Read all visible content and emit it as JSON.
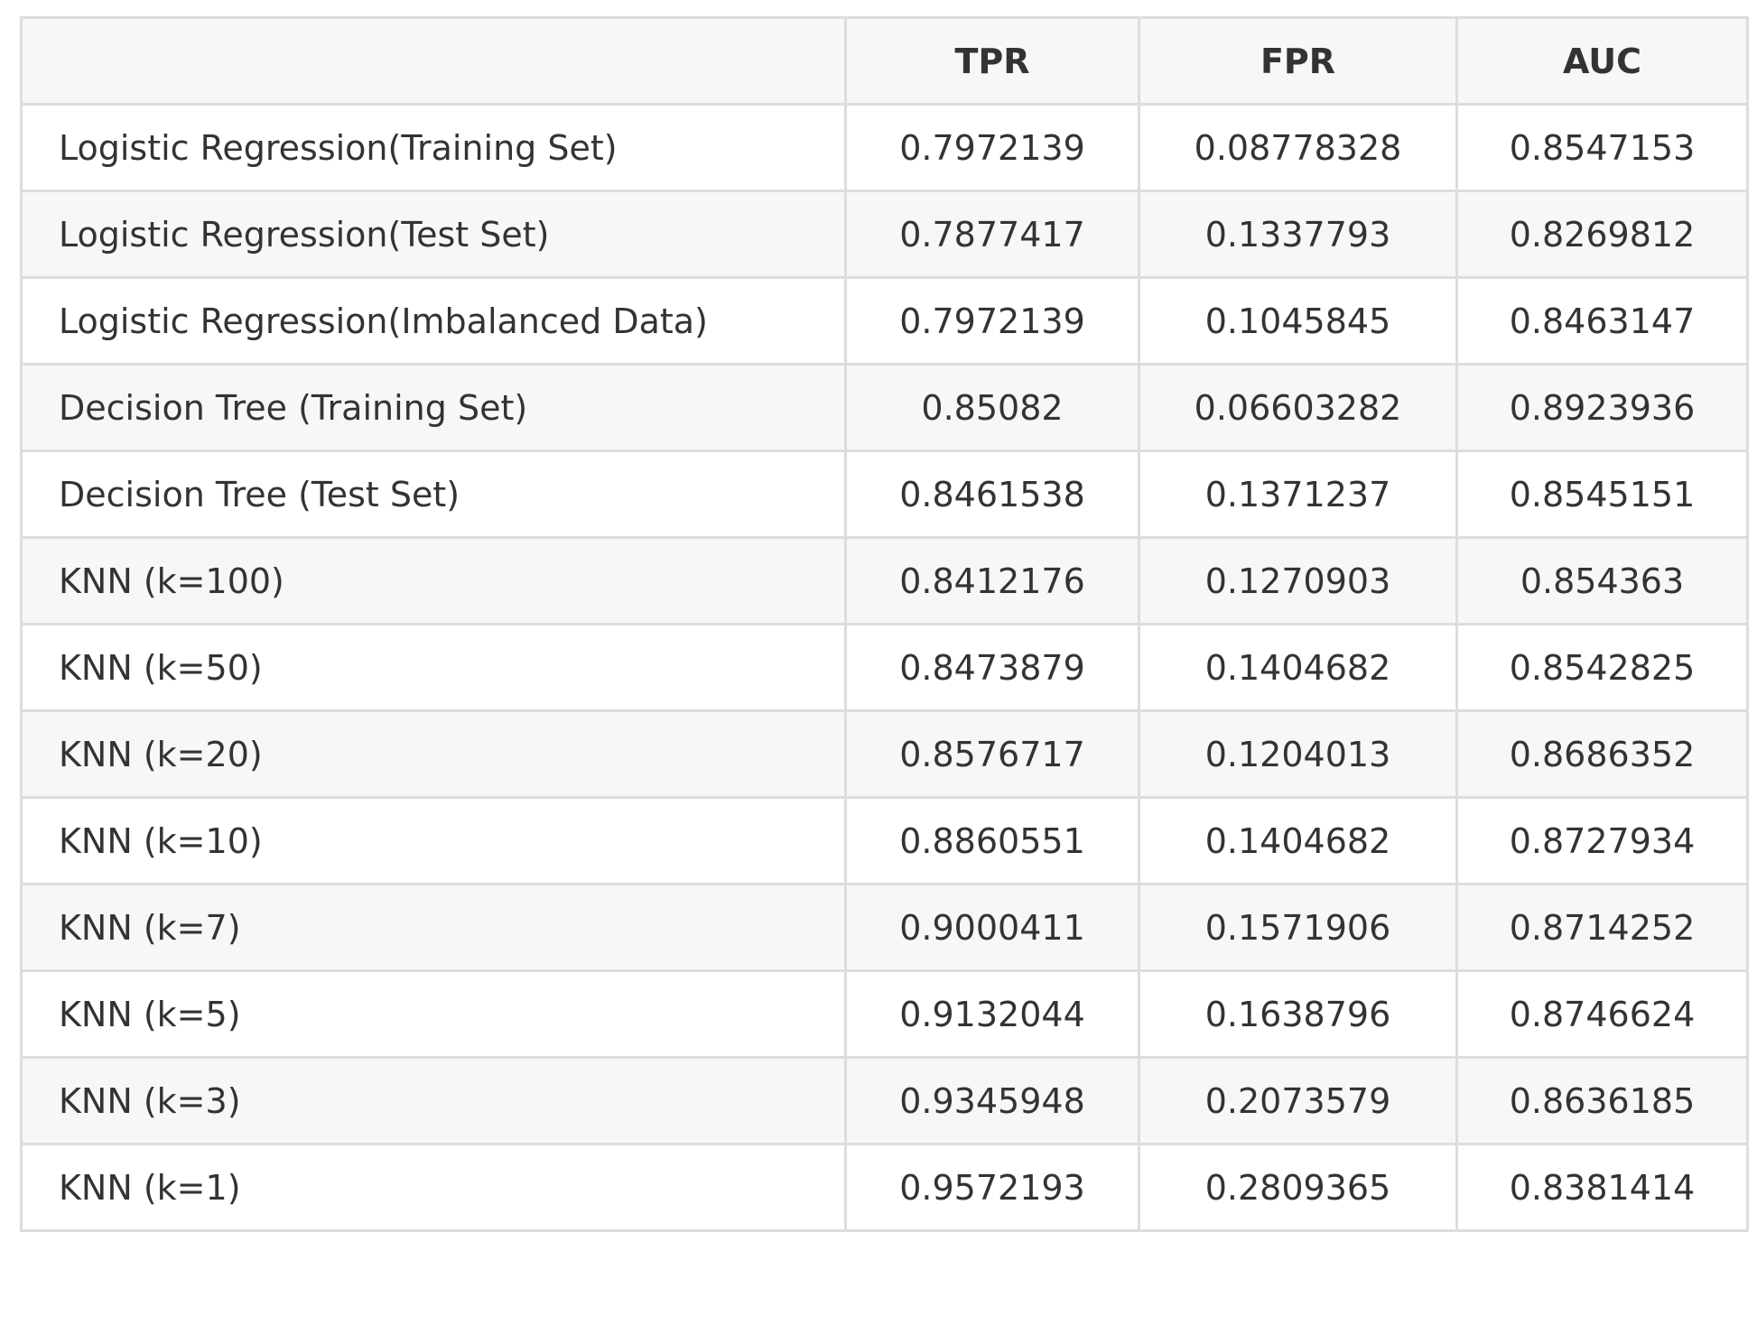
{
  "table": {
    "headers": [
      "",
      "TPR",
      "FPR",
      "AUC"
    ],
    "rows": [
      [
        "Logistic Regression(Training Set)",
        "0.7972139",
        "0.08778328",
        "0.8547153"
      ],
      [
        "Logistic Regression(Test Set)",
        "0.7877417",
        "0.1337793",
        "0.8269812"
      ],
      [
        "Logistic Regression(Imbalanced Data)",
        "0.7972139",
        "0.1045845",
        "0.8463147"
      ],
      [
        "Decision Tree (Training Set)",
        "0.85082",
        "0.06603282",
        "0.8923936"
      ],
      [
        "Decision Tree (Test Set)",
        "0.8461538",
        "0.1371237",
        "0.8545151"
      ],
      [
        "KNN (k=100)",
        "0.8412176",
        "0.1270903",
        "0.854363"
      ],
      [
        "KNN (k=50)",
        "0.8473879",
        "0.1404682",
        "0.8542825"
      ],
      [
        "KNN (k=20)",
        "0.8576717",
        "0.1204013",
        "0.8686352"
      ],
      [
        "KNN (k=10)",
        "0.8860551",
        "0.1404682",
        "0.8727934"
      ],
      [
        "KNN (k=7)",
        "0.9000411",
        "0.1571906",
        "0.8714252"
      ],
      [
        "KNN (k=5)",
        "0.9132044",
        "0.1638796",
        "0.8746624"
      ],
      [
        "KNN (k=3)",
        "0.9345948",
        "0.2073579",
        "0.8636185"
      ],
      [
        "KNN (k=1)",
        "0.9572193",
        "0.2809365",
        "0.8381414"
      ]
    ]
  }
}
